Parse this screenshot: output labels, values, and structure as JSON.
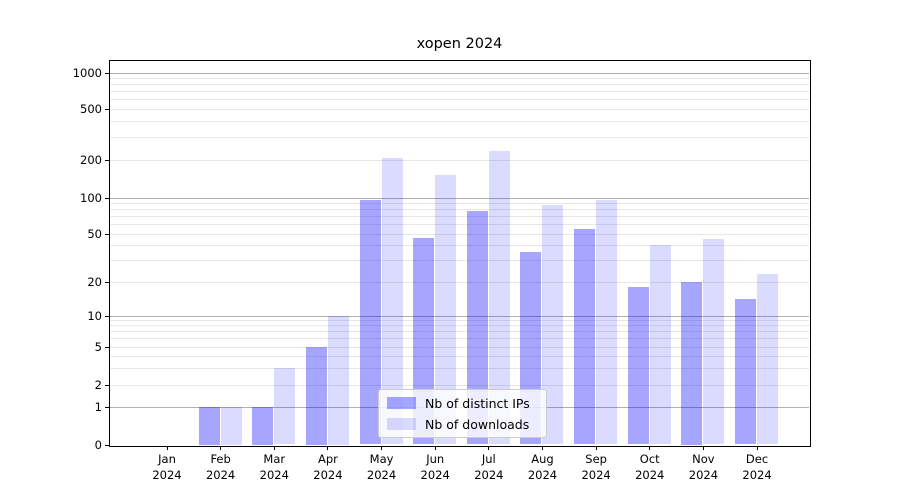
{
  "title": "xopen 2024",
  "chart_data": {
    "type": "bar",
    "title": "xopen 2024",
    "categories": [
      "Jan 2024",
      "Feb 2024",
      "Mar 2024",
      "Apr 2024",
      "May 2024",
      "Jun 2024",
      "Jul 2024",
      "Aug 2024",
      "Sep 2024",
      "Oct 2024",
      "Nov 2024",
      "Dec 2024"
    ],
    "x_tick_month_line": [
      "Jan",
      "Feb",
      "Mar",
      "Apr",
      "May",
      "Jun",
      "Jul",
      "Aug",
      "Sep",
      "Oct",
      "Nov",
      "Dec"
    ],
    "x_tick_year_line": "2024",
    "series": [
      {
        "name": "Nb of distinct IPs",
        "color": "#a6a6ff",
        "values": [
          0,
          1,
          1,
          5,
          95,
          46,
          77,
          35,
          55,
          18,
          20,
          14
        ]
      },
      {
        "name": "Nb of downloads",
        "color": "#dbdbff",
        "values": [
          0,
          1,
          3,
          10,
          205,
          150,
          235,
          87,
          95,
          40,
          45,
          23
        ]
      }
    ],
    "xlabel": "",
    "ylabel": "",
    "yscale": "symlog",
    "y_tick_values": [
      0,
      1,
      2,
      5,
      10,
      20,
      50,
      100,
      200,
      500,
      1000
    ],
    "ylim": [
      0,
      1500
    ],
    "grid": "major and minor horizontal gridlines",
    "legend_position": "inside, bottom center-left",
    "colors": {
      "distinct_ips_bar": "#a6a6ff",
      "downloads_bar": "#dbdbff",
      "grid_major": "#b0b0b0",
      "grid_minor": "#e7e7e7",
      "axis": "#000000"
    }
  },
  "legend": {
    "items": [
      "Nb of distinct IPs",
      "Nb of downloads"
    ]
  }
}
